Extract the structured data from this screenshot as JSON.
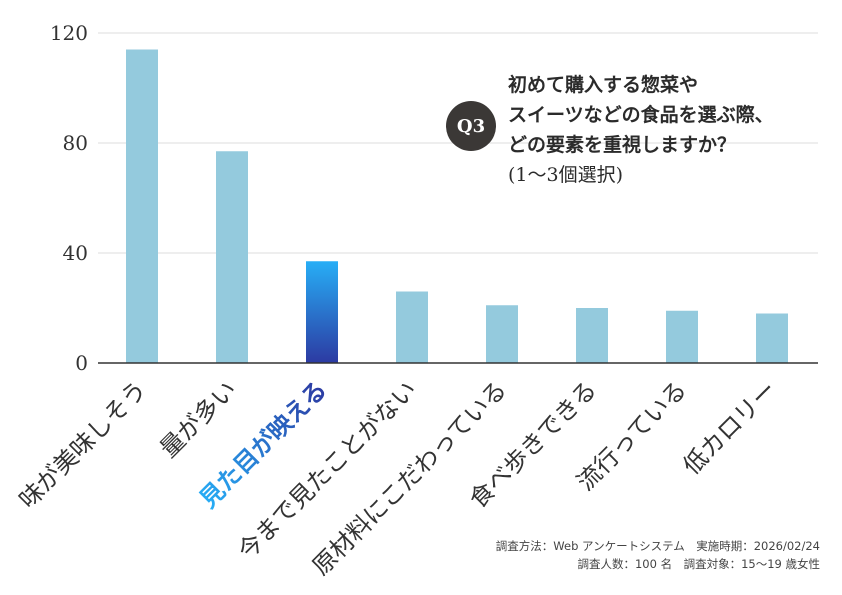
{
  "question": {
    "badge": "Q3",
    "line1": "初めて購入する惣菜や",
    "line2": "スイーツなどの食品を選ぶ際、",
    "line3": "どの要素を重視しますか？",
    "line4": "(1〜3個選択)"
  },
  "footnote": {
    "line1": "調査方法：Web アンケートシステム　実施時期：2026/02/24",
    "line2": "調査人数：100 名　調査対象：15〜19 歳女性"
  },
  "colors": {
    "bar": "#94cadd",
    "highlight_top": "#27aef6",
    "highlight_bottom": "#2c3aa2",
    "grid": "#dddddd",
    "axis": "#333333"
  },
  "chart_data": {
    "type": "bar",
    "categories": [
      "味が美味しそう",
      "量が多い",
      "見た目が映える",
      "今まで見たことがない",
      "原材料にこだわっている",
      "食べ歩きできる",
      "流行っている",
      "低カロリー"
    ],
    "values": [
      114,
      77,
      37,
      26,
      21,
      20,
      19,
      18
    ],
    "highlight_index": 2,
    "yticks": [
      0,
      40,
      80,
      120
    ],
    "ylim": [
      0,
      120
    ],
    "title": "",
    "xlabel": "",
    "ylabel": ""
  }
}
